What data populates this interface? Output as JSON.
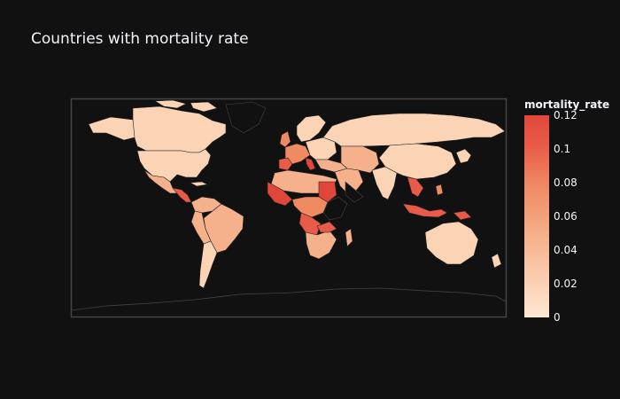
{
  "chart": {
    "title": "Countries with mortality rate",
    "colorbar_title": "mortality_rate"
  },
  "chart_data": {
    "type": "choropleth",
    "title": "Countries with mortality rate",
    "legend_title": "mortality_rate",
    "colorscale": [
      "#fee8d3",
      "#f5b18b",
      "#ef8a62",
      "#e85b48",
      "#e0473a"
    ],
    "range": [
      0,
      0.12
    ],
    "colorbar_ticks": [
      "0",
      "0.02",
      "0.04",
      "0.06",
      "0.08",
      "0.1",
      "0.12"
    ],
    "colorbar_tick_values": [
      0,
      0.02,
      0.04,
      0.06,
      0.08,
      0.1,
      0.12
    ],
    "no_data_color": "#111111",
    "land_border_color": "#444444"
  }
}
